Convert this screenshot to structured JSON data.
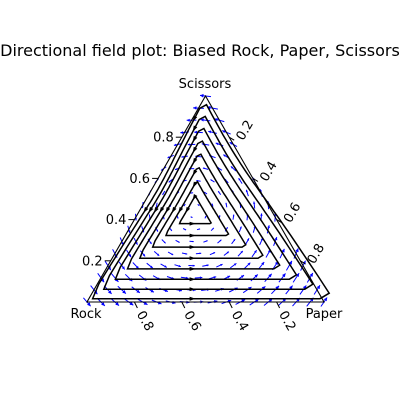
{
  "chart_data": {
    "type": "vector-field",
    "title": "Directional field plot: Biased Rock, Paper, Scissors",
    "vertices": {
      "left": "Rock",
      "right": "Paper",
      "top": "Scissors"
    },
    "axes": {
      "left_edge_ticks": [
        0.2,
        0.4,
        0.6,
        0.8
      ],
      "right_edge_ticks": [
        0.2,
        0.4,
        0.6,
        0.8
      ],
      "bottom_edge_ticks": [
        0.8,
        0.6,
        0.4,
        0.2
      ]
    },
    "grid": false,
    "field_color": "#0000ff",
    "orbit_color": "#000000",
    "orbit_direction": "counter-clockwise",
    "orbit_count": 8,
    "fixed_point": {
      "Rock": 0.33,
      "Paper": 0.23,
      "Scissors": 0.44
    }
  }
}
